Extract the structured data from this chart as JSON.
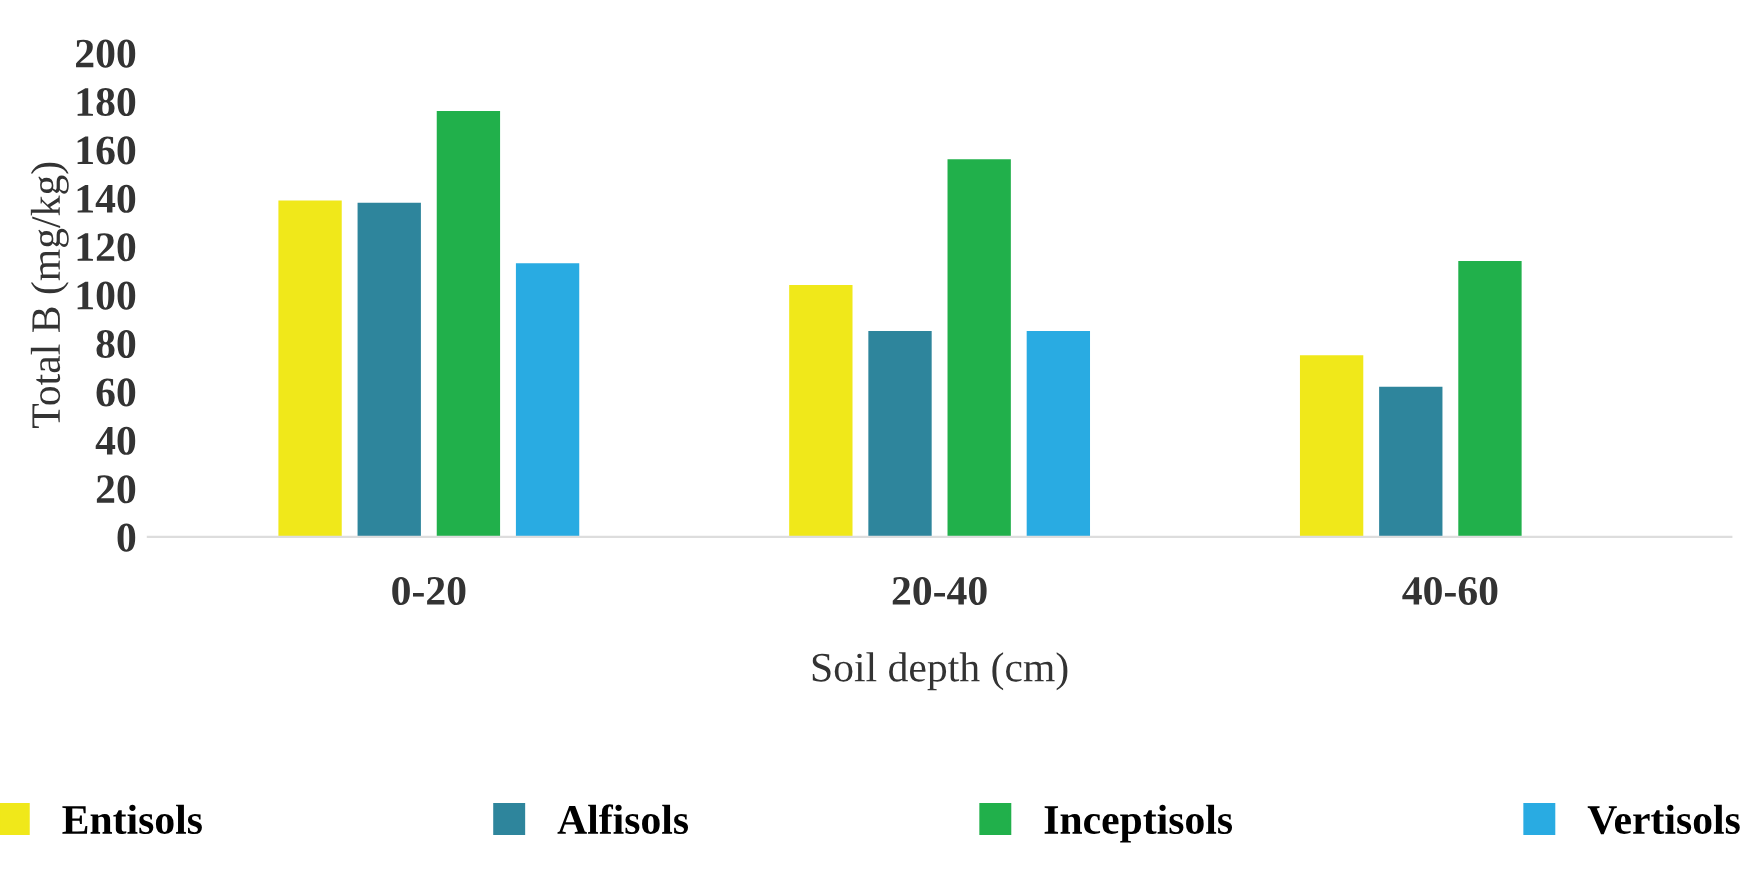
{
  "chart_data": {
    "type": "bar",
    "xlabel": "Soil depth (cm)",
    "ylabel": "Total B (mg/kg)",
    "categories": [
      "0-20",
      "20-40",
      "40-60"
    ],
    "series": [
      {
        "name": "Entisols",
        "color": "#f0e81a",
        "values": [
          139,
          104,
          75
        ]
      },
      {
        "name": "Alfisols",
        "color": "#2e859c",
        "values": [
          138,
          85,
          62
        ]
      },
      {
        "name": "Inceptisols",
        "color": "#21b04b",
        "values": [
          176,
          156,
          114
        ]
      },
      {
        "name": "Vertisols",
        "color": "#29abe2",
        "values": [
          113,
          85,
          null
        ]
      }
    ],
    "ylim": [
      0,
      200
    ],
    "yticks": [
      0,
      20,
      40,
      60,
      80,
      100,
      120,
      140,
      160,
      180,
      200
    ],
    "grid": false,
    "legend": "bottom"
  }
}
